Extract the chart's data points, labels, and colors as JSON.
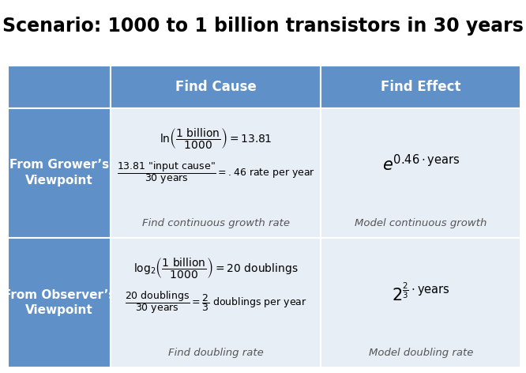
{
  "title": "Scenario: 1000 to 1 billion transistors in 30 years",
  "title_fontsize": 17,
  "header_bg": "#6090C8",
  "header_text_color": "#FFFFFF",
  "row_label_bg": "#6090C8",
  "row_label_text_color": "#FFFFFF",
  "content_bg": "#E8EEF6",
  "border_color": "#FFFFFF",
  "col_headers": [
    "Find Cause",
    "Find Effect"
  ],
  "row_labels": [
    "From Grower’s\nViewpoint",
    "From Observer’s\nViewpoint"
  ],
  "fig_bg": "#FFFFFF",
  "italic_color": "#555555"
}
